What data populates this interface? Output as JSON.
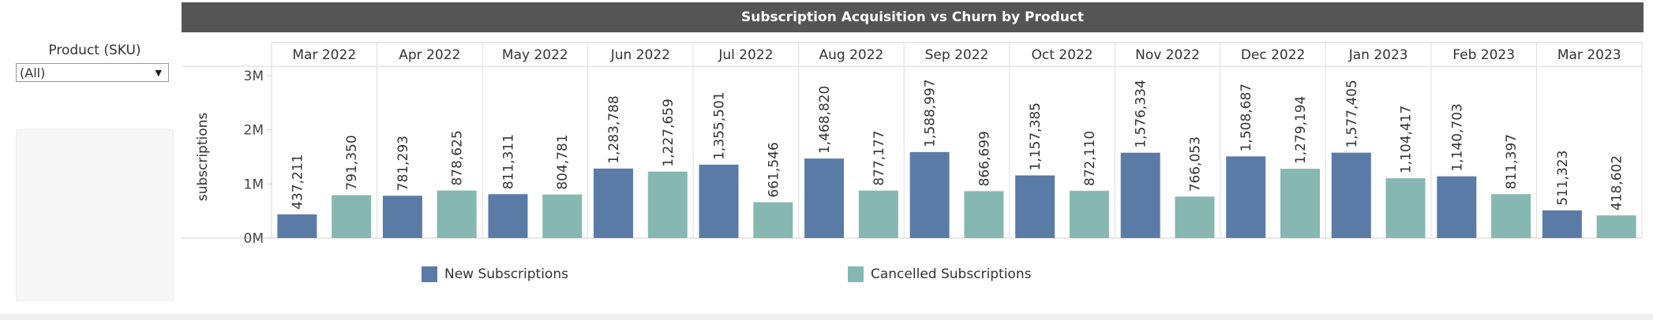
{
  "filter": {
    "title": "Product (SKU)",
    "selected": "(All)"
  },
  "chart_data": {
    "type": "bar",
    "title": "Subscription Acquisition vs Churn by Product",
    "xlabel": "",
    "ylabel": "subscriptions",
    "ylim": [
      0,
      3000000
    ],
    "yticks": [
      0,
      1000000,
      2000000,
      3000000
    ],
    "ytick_labels": [
      "0M",
      "1M",
      "2M",
      "3M"
    ],
    "categories": [
      "Mar 2022",
      "Apr 2022",
      "May 2022",
      "Jun 2022",
      "Jul 2022",
      "Aug 2022",
      "Sep 2022",
      "Oct 2022",
      "Nov 2022",
      "Dec 2022",
      "Jan 2023",
      "Feb 2023",
      "Mar 2023"
    ],
    "series": [
      {
        "name": "New Subscriptions",
        "color": "#5b7ba7",
        "values": [
          437211,
          781293,
          811311,
          1283788,
          1355501,
          1468820,
          1588997,
          1157385,
          1576334,
          1508687,
          1577405,
          1140703,
          511323
        ],
        "labels": [
          "437,211",
          "781,293",
          "811,311",
          "1,283,788",
          "1,355,501",
          "1,468,820",
          "1,588,997",
          "1,157,385",
          "1,576,334",
          "1,508,687",
          "1,577,405",
          "1,140,703",
          "511,323"
        ]
      },
      {
        "name": "Cancelled Subscriptions",
        "color": "#86b8b1",
        "values": [
          791350,
          878625,
          804781,
          1227659,
          661546,
          877177,
          866699,
          872110,
          766053,
          1279194,
          1104417,
          811397,
          418602
        ],
        "labels": [
          "791,350",
          "878,625",
          "804,781",
          "1,227,659",
          "661,546",
          "877,177",
          "866,699",
          "872,110",
          "766,053",
          "1,279,194",
          "1,104,417",
          "811,397",
          "418,602"
        ]
      }
    ],
    "legend_position": "bottom",
    "grid": false
  }
}
